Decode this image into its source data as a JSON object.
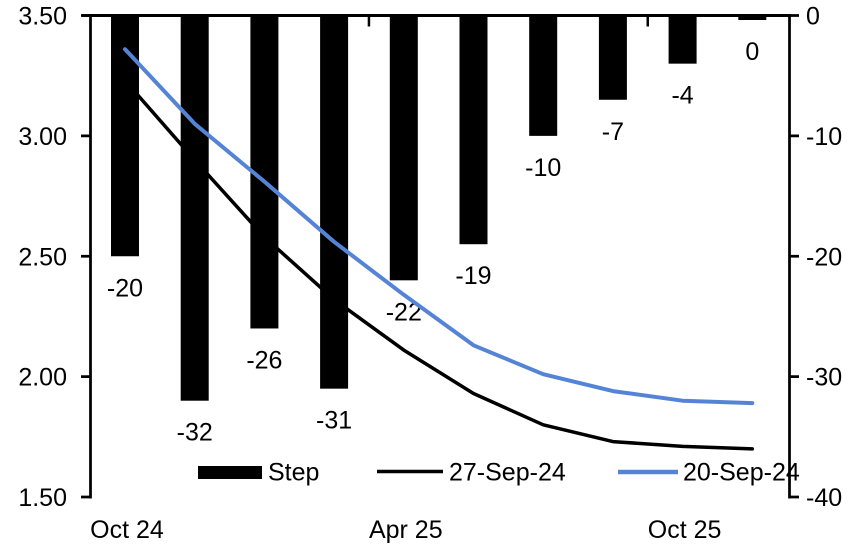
{
  "chart_data": {
    "type": "combo_bar_line",
    "title": "",
    "n_categories": 10,
    "background_color": "#ffffff",
    "x_axis": {
      "tick_labels": [
        "Oct 24",
        "Apr 25",
        "Oct 25"
      ],
      "tick_label_slots": [
        0,
        4,
        8
      ],
      "gridlines": false
    },
    "left_axis": {
      "min": 1.5,
      "max": 3.5,
      "tick_labels": [
        "3.50",
        "3.00",
        "2.50",
        "2.00",
        "1.50"
      ],
      "tick_values": [
        3.5,
        3.0,
        2.5,
        2.0,
        1.5
      ],
      "gridlines": false
    },
    "right_axis": {
      "min": -40,
      "max": 0,
      "tick_labels": [
        "0",
        "-10",
        "-20",
        "-30",
        "-40"
      ],
      "tick_values": [
        0,
        -10,
        -20,
        -30,
        -40
      ],
      "gridlines": false
    },
    "series": [
      {
        "name": "Step",
        "type": "bar",
        "axis": "right",
        "color": "#000000",
        "values": [
          -20,
          -32,
          -26,
          -31,
          -22,
          -19,
          -10,
          -7,
          -4,
          0
        ],
        "data_labels": [
          "-20",
          "-32",
          "-26",
          "-31",
          "-22",
          "-19",
          "-10",
          "-7",
          "-4",
          "0"
        ]
      },
      {
        "name": "27-Sep-24",
        "type": "line",
        "axis": "left",
        "color": "#000000",
        "values": [
          3.23,
          2.9,
          2.58,
          2.32,
          2.11,
          1.93,
          1.8,
          1.73,
          1.71,
          1.7
        ]
      },
      {
        "name": "20-Sep-24",
        "type": "line",
        "axis": "left",
        "color": "#5584d6",
        "values": [
          3.36,
          3.05,
          2.81,
          2.56,
          2.34,
          2.13,
          2.01,
          1.94,
          1.9,
          1.89
        ]
      }
    ],
    "legend": {
      "position": "bottom",
      "entries": [
        "Step",
        "27-Sep-24",
        "20-Sep-24"
      ]
    }
  }
}
